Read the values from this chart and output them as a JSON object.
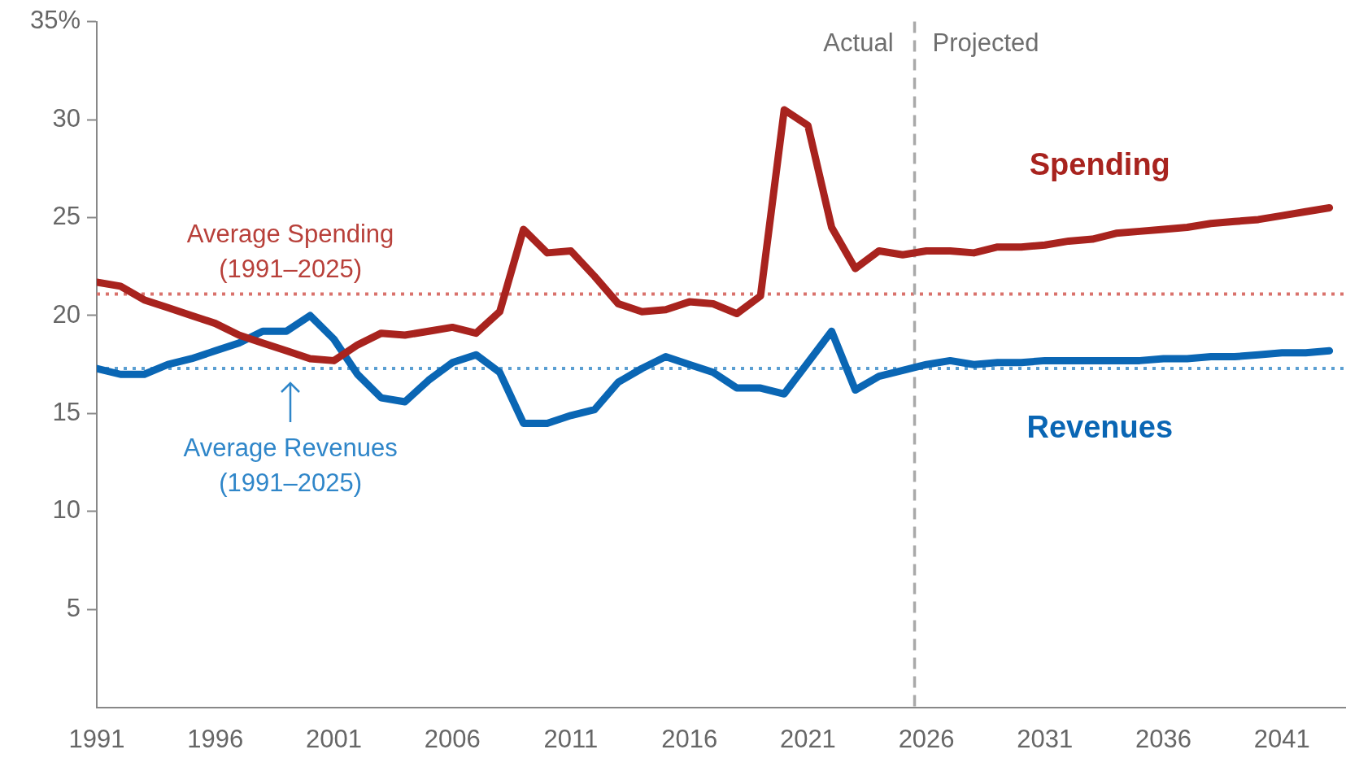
{
  "chart_data": {
    "type": "line",
    "x": [
      1991,
      1992,
      1993,
      1994,
      1995,
      1996,
      1997,
      1998,
      1999,
      2000,
      2001,
      2002,
      2003,
      2004,
      2005,
      2006,
      2007,
      2008,
      2009,
      2010,
      2011,
      2012,
      2013,
      2014,
      2015,
      2016,
      2017,
      2018,
      2019,
      2020,
      2021,
      2022,
      2023,
      2024,
      2025,
      2026,
      2027,
      2028,
      2029,
      2030,
      2031,
      2032,
      2033,
      2034,
      2035,
      2036,
      2037,
      2038,
      2039,
      2040,
      2041,
      2042,
      2043
    ],
    "series": [
      {
        "name": "Spending",
        "color": "#a8231e",
        "values": [
          21.7,
          21.5,
          20.8,
          20.4,
          20.0,
          19.6,
          19.0,
          18.6,
          18.2,
          17.8,
          17.7,
          18.5,
          19.1,
          19.0,
          19.2,
          19.4,
          19.1,
          20.2,
          24.4,
          23.2,
          23.3,
          22.0,
          20.6,
          20.2,
          20.3,
          20.7,
          20.6,
          20.1,
          21.0,
          30.5,
          29.7,
          24.5,
          22.4,
          23.3,
          23.1,
          23.3,
          23.3,
          23.2,
          23.5,
          23.5,
          23.6,
          23.8,
          23.9,
          24.2,
          24.3,
          24.4,
          24.5,
          24.7,
          24.8,
          24.9,
          25.1,
          25.3,
          25.5
        ]
      },
      {
        "name": "Revenues",
        "color": "#0a66b4",
        "values": [
          17.3,
          17.0,
          17.0,
          17.5,
          17.8,
          18.2,
          18.6,
          19.2,
          19.2,
          20.0,
          18.8,
          17.0,
          15.8,
          15.6,
          16.7,
          17.6,
          18.0,
          17.1,
          14.5,
          14.5,
          14.9,
          15.2,
          16.6,
          17.3,
          17.9,
          17.5,
          17.1,
          16.3,
          16.3,
          16.0,
          17.6,
          19.2,
          16.2,
          16.9,
          17.2,
          17.5,
          17.7,
          17.5,
          17.6,
          17.6,
          17.7,
          17.7,
          17.7,
          17.7,
          17.7,
          17.8,
          17.8,
          17.9,
          17.9,
          18.0,
          18.1,
          18.1,
          18.2
        ]
      }
    ],
    "xlim": [
      1991,
      2043.7
    ],
    "xticks": [
      1991,
      1996,
      2001,
      2006,
      2011,
      2016,
      2021,
      2026,
      2031,
      2036,
      2041
    ],
    "ylim": [
      0,
      35
    ],
    "yticks": [
      {
        "value": 5,
        "label": "5"
      },
      {
        "value": 10,
        "label": "10"
      },
      {
        "value": 15,
        "label": "15"
      },
      {
        "value": 20,
        "label": "20"
      },
      {
        "value": 25,
        "label": "25"
      },
      {
        "value": 30,
        "label": "30"
      },
      {
        "value": 35,
        "label": "35%"
      }
    ],
    "ref_lines": [
      {
        "axis": "y",
        "value": 21.1,
        "label": "Average Spending (1991–2025)",
        "color": "#d9726c",
        "line_style": "dotted"
      },
      {
        "axis": "y",
        "value": 17.3,
        "label": "Average Revenues (1991–2025)",
        "color": "#5b9fd2",
        "line_style": "dotted"
      },
      {
        "axis": "x",
        "value": 2025.5,
        "color": "#a9a9a9",
        "line_style": "dashed"
      }
    ],
    "annotations": [
      {
        "text": "Actual",
        "x": 2025.5,
        "y": 34
      },
      {
        "text": "Projected",
        "x": 2025.5,
        "y": 34
      }
    ],
    "grid": false,
    "legend": false,
    "marker": "none",
    "line_style": "solid"
  }
}
